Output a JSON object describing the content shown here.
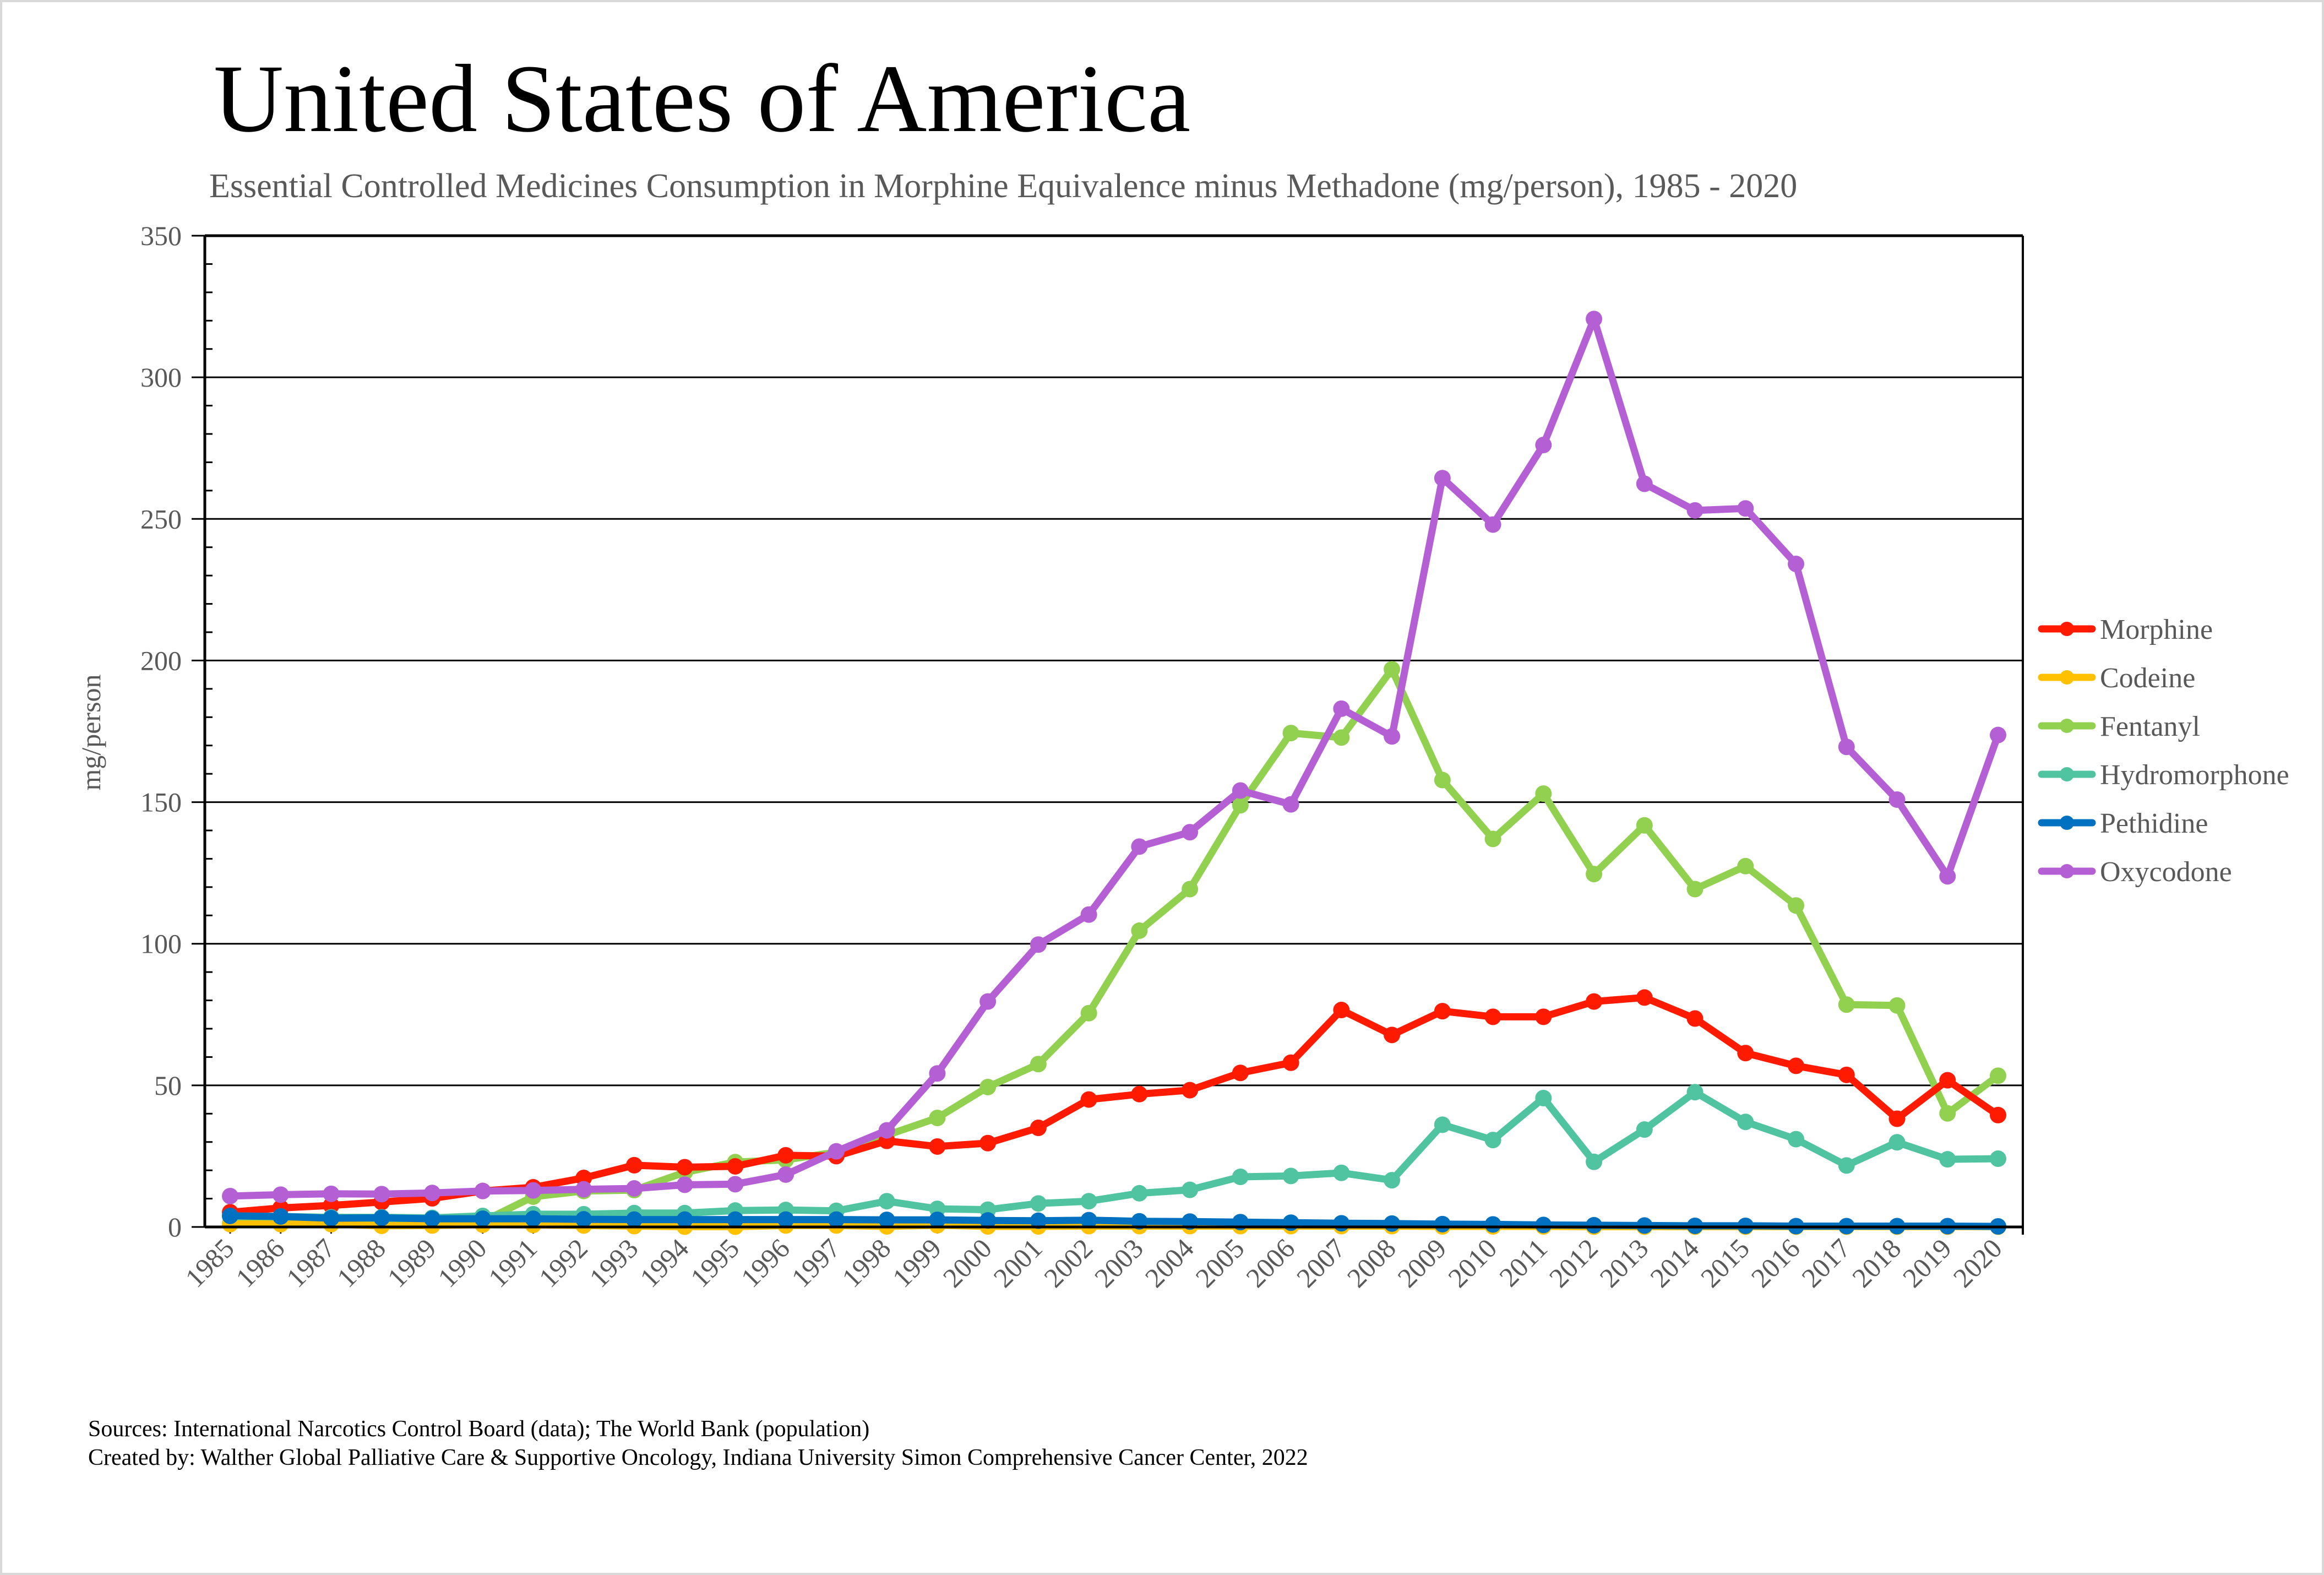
{
  "page": {
    "title": "United States of America",
    "subtitle": "Essential Controlled Medicines Consumption in Morphine Equivalence minus Methadone (mg/person), 1985 - 2020",
    "footer_sources": "Sources: International Narcotics Control Board (data); The World Bank (population)",
    "footer_created": "Created by: Walther Global Palliative Care & Supportive Oncology, Indiana University Simon Comprehensive Cancer Center, 2022"
  },
  "chart_data": {
    "type": "line",
    "title": "United States of America",
    "subtitle": "Essential Controlled Medicines Consumption in Morphine Equivalence minus Methadone (mg/person), 1985 - 2020",
    "xlabel": "",
    "ylabel": "mg/person",
    "ylim": [
      0,
      350
    ],
    "yticks": [
      0,
      50,
      100,
      150,
      200,
      250,
      300,
      350
    ],
    "grid": true,
    "legend_position": "right",
    "x": [
      "1985",
      "1986",
      "1987",
      "1988",
      "1989",
      "1990",
      "1991",
      "1992",
      "1993",
      "1994",
      "1995",
      "1996",
      "1997",
      "1998",
      "1999",
      "2000",
      "2001",
      "2002",
      "2003",
      "2004",
      "2005",
      "2006",
      "2007",
      "2008",
      "2009",
      "2010",
      "2011",
      "2012",
      "2013",
      "2014",
      "2015",
      "2016",
      "2017",
      "2018",
      "2019",
      "2020"
    ],
    "series": [
      {
        "name": "Morphine",
        "color": "#ff1a00",
        "values": [
          5.2,
          6.7,
          7.6,
          8.8,
          10.1,
          12.7,
          14.0,
          17.3,
          21.8,
          21.1,
          21.4,
          25.3,
          25.0,
          30.4,
          28.4,
          29.6,
          35.0,
          45.0,
          46.9,
          48.3,
          54.4,
          58.0,
          76.6,
          67.8,
          76.2,
          74.2,
          74.2,
          79.6,
          81.0,
          73.6,
          61.4,
          56.9,
          53.7,
          38.2,
          51.8,
          39.5
        ]
      },
      {
        "name": "Codeine",
        "color": "#ffc000",
        "values": [
          1.0,
          1.0,
          1.0,
          0.4,
          0.5,
          0.8,
          0.7,
          0.5,
          0.3,
          0.1,
          0.1,
          0.5,
          0.5,
          0.2,
          0.6,
          0.2,
          0.2,
          0.3,
          0.3,
          0.3,
          0.3,
          0.3,
          0.3,
          0.3,
          0.2,
          0.2,
          0.2,
          0.1,
          0.1,
          0.1,
          0.1,
          0.1,
          0.1,
          0.1,
          0.1,
          0.1
        ]
      },
      {
        "name": "Fentanyl",
        "color": "#92d050",
        "values": [
          1.3,
          1.3,
          1.3,
          1.5,
          1.1,
          1.9,
          10.7,
          12.7,
          13.0,
          19.3,
          22.9,
          23.7,
          26.4,
          32.4,
          38.5,
          49.4,
          57.5,
          75.5,
          104.6,
          119.3,
          148.9,
          174.4,
          172.8,
          196.9,
          157.8,
          137.0,
          153.0,
          124.6,
          141.8,
          119.3,
          127.4,
          113.5,
          78.5,
          78.2,
          40.1,
          53.4
        ]
      },
      {
        "name": "Hydromorphone",
        "color": "#50c4a0",
        "values": [
          3.9,
          3.7,
          3.4,
          3.4,
          3.2,
          3.9,
          4.5,
          4.5,
          4.9,
          4.9,
          5.8,
          6.0,
          5.7,
          9.1,
          6.4,
          6.1,
          8.3,
          9.1,
          11.9,
          13.1,
          17.7,
          18.0,
          19.1,
          16.5,
          36.1,
          30.7,
          45.5,
          23.0,
          34.4,
          47.6,
          37.1,
          31.0,
          21.7,
          29.9,
          23.9,
          24.1
        ]
      },
      {
        "name": "Pethidine",
        "color": "#0070c0",
        "values": [
          3.9,
          3.7,
          3.1,
          3.2,
          2.9,
          2.9,
          2.9,
          2.7,
          2.6,
          2.6,
          2.6,
          2.6,
          2.6,
          2.5,
          2.5,
          2.3,
          2.2,
          2.4,
          2.0,
          1.9,
          1.7,
          1.5,
          1.3,
          1.2,
          1.0,
          0.9,
          0.7,
          0.6,
          0.5,
          0.4,
          0.4,
          0.3,
          0.3,
          0.3,
          0.3,
          0.2
        ]
      },
      {
        "name": "Oxycodone",
        "color": "#b460d4",
        "values": [
          10.9,
          11.4,
          11.7,
          11.6,
          12.0,
          12.7,
          12.9,
          13.3,
          13.6,
          14.9,
          15.1,
          18.5,
          26.7,
          34.1,
          54.2,
          79.6,
          99.7,
          110.3,
          134.3,
          139.4,
          154.1,
          149.2,
          183.0,
          173.2,
          264.4,
          248.0,
          276.1,
          320.6,
          262.4,
          253.0,
          253.7,
          234.1,
          169.5,
          150.9,
          123.8,
          173.7
        ]
      }
    ]
  }
}
